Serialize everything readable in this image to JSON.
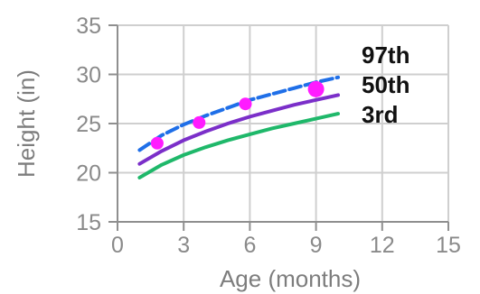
{
  "chart_data": {
    "type": "line",
    "title": "",
    "xlabel": "Age (months)",
    "ylabel": "Height (in)",
    "xlim": [
      0,
      15
    ],
    "ylim": [
      15,
      35
    ],
    "x_ticks": [
      0,
      3,
      6,
      9,
      12,
      15
    ],
    "y_ticks": [
      15,
      20,
      25,
      30,
      35
    ],
    "x_tick_labels": [
      "0",
      "3",
      "6",
      "9",
      "12",
      "15"
    ],
    "y_tick_labels": [
      "15",
      "20",
      "25",
      "30",
      "35"
    ],
    "grid": true,
    "legend": "right",
    "series": [
      {
        "name": "97th",
        "color": "#1f6fe8",
        "dashed": true,
        "x": [
          1,
          2,
          3,
          4,
          5,
          6,
          7,
          8,
          9,
          10
        ],
        "values": [
          22.3,
          23.8,
          24.9,
          25.8,
          26.6,
          27.4,
          28.0,
          28.6,
          29.2,
          29.7
        ]
      },
      {
        "name": "50th",
        "color": "#7b2fc9",
        "dashed": false,
        "x": [
          1,
          2,
          3,
          4,
          5,
          6,
          7,
          8,
          9,
          10
        ],
        "values": [
          20.9,
          22.2,
          23.3,
          24.2,
          25.0,
          25.7,
          26.3,
          26.9,
          27.4,
          27.9
        ]
      },
      {
        "name": "3rd",
        "color": "#1fb86a",
        "dashed": false,
        "x": [
          1,
          2,
          3,
          4,
          5,
          6,
          7,
          8,
          9,
          10
        ],
        "values": [
          19.5,
          20.8,
          21.8,
          22.6,
          23.3,
          23.9,
          24.5,
          25.0,
          25.5,
          26.0
        ]
      }
    ],
    "points": {
      "color": "#ff1cff",
      "x": [
        1.8,
        3.7,
        5.8,
        9.0
      ],
      "values": [
        23.0,
        25.1,
        27.0,
        28.5
      ],
      "sizes": [
        "small",
        "small",
        "small",
        "large"
      ]
    }
  }
}
